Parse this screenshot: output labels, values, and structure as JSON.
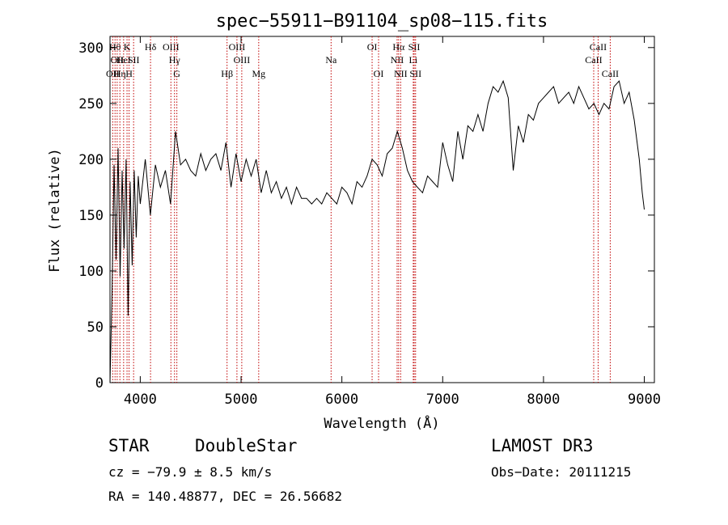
{
  "chart_data": {
    "type": "line",
    "title": "spec−55911−B91104_sp08−115.fits",
    "xlabel": "Wavelength (Å)",
    "ylabel": "Flux (relative)",
    "xlim": [
      3700,
      9100
    ],
    "ylim": [
      0,
      310
    ],
    "xticks": [
      4000,
      5000,
      6000,
      7000,
      8000,
      9000
    ],
    "yticks": [
      0,
      50,
      100,
      150,
      200,
      250,
      300
    ],
    "series": [
      {
        "x": [
          3700,
          3720,
          3740,
          3760,
          3780,
          3800,
          3820,
          3840,
          3860,
          3880,
          3900,
          3920,
          3940,
          3960,
          3980,
          4000,
          4050,
          4100,
          4150,
          4200,
          4250,
          4300,
          4350,
          4400,
          4450,
          4500,
          4550,
          4600,
          4650,
          4700,
          4750,
          4800,
          4850,
          4900,
          4950,
          5000,
          5050,
          5100,
          5150,
          5200,
          5250,
          5300,
          5350,
          5400,
          5450,
          5500,
          5550,
          5600,
          5650,
          5700,
          5750,
          5800,
          5850,
          5900,
          5950,
          6000,
          6050,
          6100,
          6150,
          6200,
          6250,
          6300,
          6350,
          6400,
          6450,
          6500,
          6550,
          6600,
          6650,
          6700,
          6750,
          6800,
          6850,
          6900,
          6950,
          7000,
          7050,
          7100,
          7150,
          7200,
          7250,
          7300,
          7350,
          7400,
          7450,
          7500,
          7550,
          7600,
          7650,
          7700,
          7750,
          7800,
          7850,
          7900,
          7950,
          8000,
          8050,
          8100,
          8150,
          8200,
          8250,
          8300,
          8350,
          8400,
          8450,
          8500,
          8550,
          8600,
          8650,
          8700,
          8750,
          8800,
          8850,
          8900,
          8950,
          8980,
          9000
        ],
        "y": [
          0,
          80,
          195,
          110,
          210,
          95,
          190,
          120,
          200,
          60,
          180,
          105,
          190,
          130,
          185,
          160,
          200,
          150,
          195,
          175,
          190,
          160,
          225,
          195,
          200,
          190,
          185,
          205,
          190,
          200,
          205,
          190,
          215,
          175,
          205,
          180,
          200,
          185,
          200,
          170,
          190,
          170,
          180,
          165,
          175,
          160,
          175,
          165,
          165,
          160,
          165,
          160,
          170,
          165,
          160,
          175,
          170,
          160,
          180,
          175,
          185,
          200,
          195,
          185,
          205,
          210,
          225,
          210,
          190,
          180,
          175,
          170,
          185,
          180,
          175,
          215,
          195,
          180,
          225,
          200,
          230,
          225,
          240,
          225,
          250,
          265,
          260,
          270,
          255,
          190,
          230,
          215,
          240,
          235,
          250,
          255,
          260,
          265,
          250,
          255,
          260,
          250,
          265,
          255,
          245,
          250,
          240,
          250,
          245,
          265,
          270,
          250,
          260,
          235,
          200,
          170,
          155
        ]
      }
    ],
    "line_markers": [
      {
        "wavelength": 3727,
        "label": "OII",
        "row": 3
      },
      {
        "wavelength": 3750,
        "label": "Hθ",
        "row": 1
      },
      {
        "wavelength": 3771,
        "label": "OII",
        "row": 2
      },
      {
        "wavelength": 3798,
        "label": "Hη",
        "row": 3
      },
      {
        "wavelength": 3835,
        "label": "HeI",
        "row": 2
      },
      {
        "wavelength": 3869,
        "label": "K",
        "row": 1
      },
      {
        "wavelength": 3889,
        "label": "H",
        "row": 3
      },
      {
        "wavelength": 3934,
        "label": "SII",
        "row": 2
      },
      {
        "wavelength": 4102,
        "label": "Hδ",
        "row": 1
      },
      {
        "wavelength": 4304,
        "label": "OIII",
        "row": 1
      },
      {
        "wavelength": 4340,
        "label": "Hγ",
        "row": 2
      },
      {
        "wavelength": 4363,
        "label": "G",
        "row": 3
      },
      {
        "wavelength": 4861,
        "label": "Hβ",
        "row": 3
      },
      {
        "wavelength": 4959,
        "label": "OIII",
        "row": 1
      },
      {
        "wavelength": 5007,
        "label": "OIII",
        "row": 2
      },
      {
        "wavelength": 5175,
        "label": "Mg",
        "row": 3
      },
      {
        "wavelength": 5893,
        "label": "Na",
        "row": 2
      },
      {
        "wavelength": 6300,
        "label": "OI",
        "row": 1
      },
      {
        "wavelength": 6364,
        "label": "OI",
        "row": 3
      },
      {
        "wavelength": 6548,
        "label": "NII",
        "row": 2
      },
      {
        "wavelength": 6563,
        "label": "Hα",
        "row": 1
      },
      {
        "wavelength": 6583,
        "label": "NII",
        "row": 3
      },
      {
        "wavelength": 6708,
        "label": "Li",
        "row": 2
      },
      {
        "wavelength": 6717,
        "label": "SII",
        "row": 1
      },
      {
        "wavelength": 6731,
        "label": "SII",
        "row": 3
      },
      {
        "wavelength": 8498,
        "label": "CaII",
        "row": 2
      },
      {
        "wavelength": 8542,
        "label": "CaII",
        "row": 1
      },
      {
        "wavelength": 8662,
        "label": "CaII",
        "row": 3
      }
    ]
  },
  "info": {
    "object_class": "STAR",
    "subclass": "DoubleStar",
    "survey": "LAMOST DR3",
    "cz": "cz = −79.9 ± 8.5 km/s",
    "obs_date": "Obs−Date: 20111215",
    "radec": "RA = 140.48877, DEC =  26.56682"
  },
  "colors": {
    "spectrum": "#000000",
    "marker_line": "#c00000",
    "text": "#000000"
  }
}
